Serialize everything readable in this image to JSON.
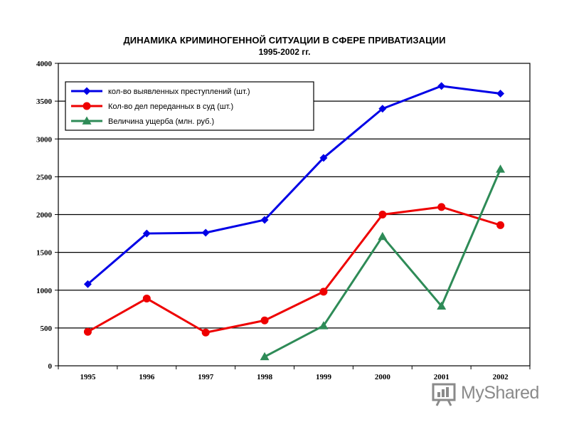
{
  "chart_data": {
    "type": "line",
    "title": "ДИНАМИКА КРИМИНОГЕННОЙ СИТУАЦИИ В СФЕРЕ ПРИВАТИЗАЦИИ",
    "subtitle": "1995-2002 гг.",
    "xlabel": "",
    "ylabel": "",
    "categories": [
      "1995",
      "1996",
      "1997",
      "1998",
      "1999",
      "2000",
      "2001",
      "2002"
    ],
    "ylim": [
      0,
      4000
    ],
    "yticks": [
      0,
      500,
      1000,
      1500,
      2000,
      2500,
      3000,
      3500,
      4000
    ],
    "grid": true,
    "legend_position": "top-left",
    "series": [
      {
        "name": "кол-во выявленных преступлений (шт.)",
        "color": "#0000e6",
        "marker": "diamond",
        "values": [
          1080,
          1750,
          1760,
          1930,
          2750,
          3400,
          3700,
          3600
        ]
      },
      {
        "name": "Кол-во дел переданных в суд (шт.)",
        "color": "#ee0000",
        "marker": "circle",
        "values": [
          450,
          890,
          440,
          600,
          980,
          2000,
          2100,
          1860
        ]
      },
      {
        "name": "Величина ущерба (млн. руб.)",
        "color": "#2e8b57",
        "marker": "triangle",
        "values": [
          null,
          null,
          null,
          120,
          530,
          1710,
          790,
          2600
        ]
      }
    ]
  },
  "watermark": {
    "text": "MyShared",
    "icon": "presentation-board-icon"
  }
}
